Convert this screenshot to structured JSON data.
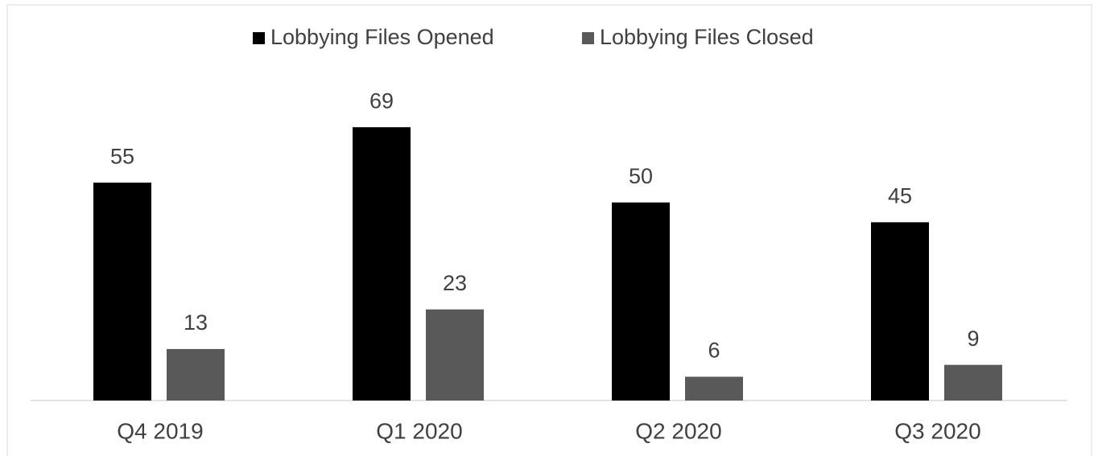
{
  "chart_data": {
    "type": "bar",
    "categories": [
      "Q4 2019",
      "Q1 2020",
      "Q2 2020",
      "Q3 2020"
    ],
    "series": [
      {
        "name": "Lobbying Files Opened",
        "color": "#000000",
        "values": [
          55,
          69,
          50,
          45
        ]
      },
      {
        "name": "Lobbying Files Closed",
        "color": "#595959",
        "values": [
          13,
          23,
          6,
          9
        ]
      }
    ],
    "ylim": [
      0,
      80
    ],
    "legend": "top"
  }
}
